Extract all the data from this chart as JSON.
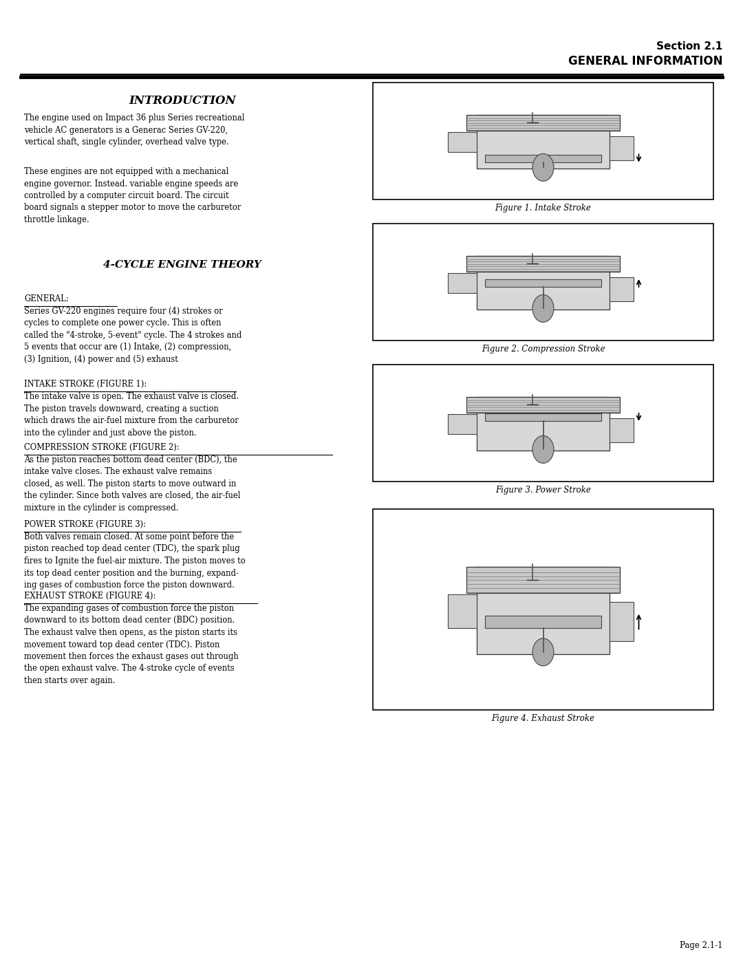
{
  "page_width": 10.8,
  "page_height": 13.97,
  "background_color": "#ffffff",
  "section_label": "Section 2.1",
  "section_title": "GENERAL INFORMATION",
  "page_number": "Page 2.1-1",
  "intro_title": "INTRODUCTION",
  "intro_para1": "The engine used on Impact 36 plus Series recreational\nvehicle AC generators is a Generac Series GV-220,\nvertical shaft, single cylinder, overhead valve type.",
  "intro_para2": "These engines are not equipped with a mechanical\nengine governor. Instead. variable engine speeds are\ncontrolled by a computer circuit board. The circuit\nboard signals a stepper motor to move the carburetor\nthrottle linkage.",
  "cycle_title": "4-CYCLE ENGINE THEORY",
  "general_heading": "GENERAL:",
  "general_text": "Series GV-220 engines require four (4) strokes or\ncycles to complete one power cycle. This is often\ncalled the \"4-stroke, 5-event\" cycle. The 4 strokes and\n5 events that occur are (1) Intake, (2) compression,\n(3) Ignition, (4) power and (5) exhaust",
  "intake_heading": "INTAKE STROKE (FIGURE 1):",
  "intake_text": "The intake valve is open. The exhaust valve is closed.\nThe piston travels downward, creating a suction\nwhich draws the air-fuel mixture from the carburetor\ninto the cylinder and just above the piston.",
  "compression_heading": "COMPRESSION STROKE (FIGURE 2):",
  "compression_text": "As the piston reaches bottom dead center (BDC), the\nintake valve closes. The exhaust valve remains\nclosed, as well. The piston starts to move outward in\nthe cylinder. Since both valves are closed, the air-fuel\nmixture in the cylinder is compressed.",
  "power_heading": "POWER STROKE (FIGURE 3):",
  "power_text": "Both valves remain closed. At some point before the\npiston reached top dead center (TDC), the spark plug\nfires to Ignite the fuel-air mixture. The piston moves to\nits top dead center position and the burning, expand-\ning gases of combustion force the piston downward.",
  "exhaust_heading": "EXHAUST STROKE (FIGURE 4):",
  "exhaust_text": "The expanding gases of combustion force the piston\ndownward to its bottom dead center (BDC) position.\nThe exhaust valve then opens, as the piston starts its\nmovement toward top dead center (TDC). Piston\nmovement then forces the exhaust gases out through\nthe open exhaust valve. The 4-stroke cycle of events\nthen starts over again.",
  "fig1_caption": "Figure 1. Intake Stroke",
  "fig2_caption": "Figure 2. Compression Stroke",
  "fig3_caption": "Figure 3. Power Stroke",
  "fig4_caption": "Figure 4. Exhaust Stroke"
}
